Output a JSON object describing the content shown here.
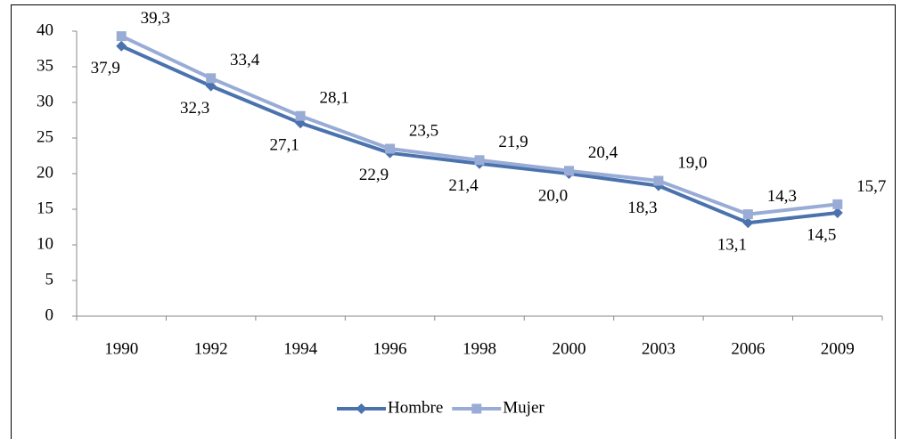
{
  "chart_data": {
    "type": "line",
    "categories": [
      "1990",
      "1992",
      "1994",
      "1996",
      "1998",
      "2000",
      "2003",
      "2006",
      "2009"
    ],
    "series": [
      {
        "name": "Hombre",
        "color": "#4a72ad",
        "marker": "diamond",
        "values": [
          37.9,
          32.3,
          27.1,
          22.9,
          21.4,
          20.0,
          18.3,
          13.1,
          14.5
        ],
        "value_labels": [
          "37,9",
          "32,3",
          "27,1",
          "22,9",
          "21,4",
          "20,0",
          "18,3",
          "13,1",
          "14,5"
        ]
      },
      {
        "name": "Mujer",
        "color": "#99acd6",
        "marker": "square",
        "values": [
          39.3,
          33.4,
          28.1,
          23.5,
          21.9,
          20.4,
          19.0,
          14.3,
          15.7
        ],
        "value_labels": [
          "39,3",
          "33,4",
          "28,1",
          "23,5",
          "21,9",
          "20,4",
          "19,0",
          "14,3",
          "15,7"
        ]
      }
    ],
    "ylim": [
      0,
      40
    ],
    "yticks": [
      0,
      5,
      10,
      15,
      20,
      25,
      30,
      35,
      40
    ],
    "grid": false,
    "legend": "bottom"
  }
}
